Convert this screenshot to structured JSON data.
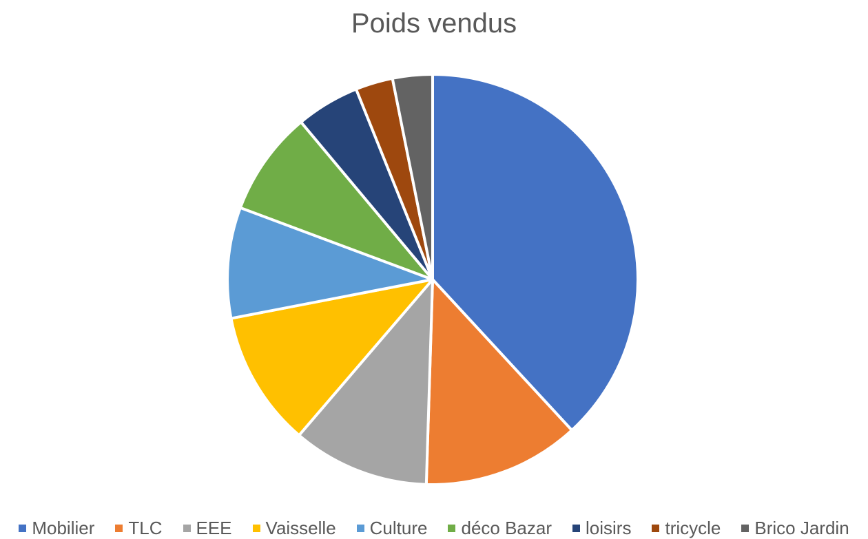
{
  "chart_data": {
    "type": "pie",
    "title": "Poids vendus",
    "legend_position": "bottom",
    "slices": [
      {
        "name": "Mobilier",
        "value": 38.9,
        "color": "#4472C4"
      },
      {
        "name": "TLC",
        "value": 12.6,
        "color": "#ED7D31"
      },
      {
        "name": "EEE",
        "value": 11.0,
        "color": "#A5A5A5"
      },
      {
        "name": "Vaisselle",
        "value": 10.9,
        "color": "#FFC000"
      },
      {
        "name": "Culture",
        "value": 8.9,
        "color": "#5B9BD5"
      },
      {
        "name": "déco Bazar",
        "value": 8.4,
        "color": "#70AD47"
      },
      {
        "name": "loisirs",
        "value": 5.1,
        "color": "#264478"
      },
      {
        "name": "tricycle",
        "value": 3.0,
        "color": "#9E480E"
      },
      {
        "name": "Brico Jardin",
        "value": 3.2,
        "color": "#636363"
      }
    ]
  }
}
